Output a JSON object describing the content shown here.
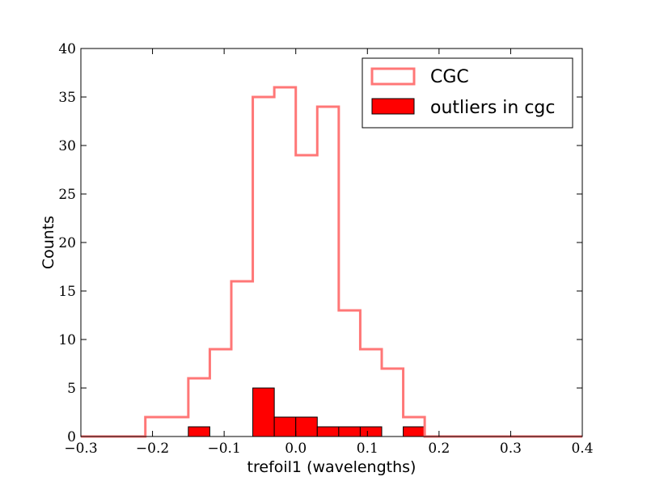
{
  "chart_data": {
    "type": "histogram",
    "xlabel": "trefoil1 (wavelengths)",
    "ylabel": "Counts",
    "xlim": [
      -0.3,
      0.4
    ],
    "ylim": [
      0,
      40
    ],
    "x_ticks": [
      -0.3,
      -0.2,
      -0.1,
      0.0,
      0.1,
      0.2,
      0.3,
      0.4
    ],
    "x_tick_labels": [
      "−0.3",
      "−0.2",
      "−0.1",
      "0.0",
      "0.1",
      "0.2",
      "0.3",
      "0.4"
    ],
    "y_ticks": [
      0,
      5,
      10,
      15,
      20,
      25,
      30,
      35,
      40
    ],
    "y_tick_labels": [
      "0",
      "5",
      "10",
      "15",
      "20",
      "25",
      "30",
      "35",
      "40"
    ],
    "grid": false,
    "legend_position": "top-right",
    "series": [
      {
        "name": "CGC",
        "style": "step",
        "color": "#ff7777",
        "bin_edges": [
          -0.3,
          -0.21,
          -0.15,
          -0.12,
          -0.09,
          -0.06,
          -0.03,
          0.0,
          0.03,
          0.06,
          0.09,
          0.12,
          0.15,
          0.18,
          0.3,
          0.4
        ],
        "counts": [
          0,
          2,
          6,
          9,
          16,
          35,
          36,
          29,
          34,
          13,
          9,
          7,
          2,
          0,
          0
        ]
      },
      {
        "name": "outliers in cgc",
        "style": "filled",
        "color": "#ff0000",
        "bin_edges": [
          -0.15,
          -0.12,
          -0.09,
          -0.06,
          -0.03,
          0.0,
          0.03,
          0.06,
          0.09,
          0.12,
          0.15,
          0.18
        ],
        "counts": [
          1,
          0,
          0,
          5,
          2,
          2,
          1,
          1,
          1,
          0,
          1
        ]
      }
    ]
  }
}
